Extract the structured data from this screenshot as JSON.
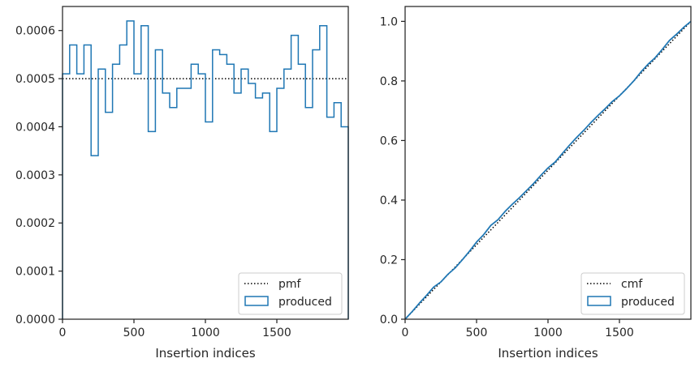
{
  "chart_data": [
    {
      "type": "line",
      "subtype": "step-histogram",
      "title": "",
      "xlabel": "Insertion indices",
      "ylabel": "",
      "xlim": [
        0,
        2000
      ],
      "ylim": [
        0,
        0.00065
      ],
      "xticks": [
        0,
        500,
        1000,
        1500
      ],
      "yticks": [
        0.0,
        0.0001,
        0.0002,
        0.0003,
        0.0004,
        0.0005,
        0.0006
      ],
      "ytick_labels": [
        "0.0000",
        "0.0001",
        "0.0002",
        "0.0003",
        "0.0004",
        "0.0005",
        "0.0006"
      ],
      "grid": false,
      "legend_position": "lower-right",
      "bin_edges": [
        0,
        50,
        100,
        150,
        200,
        250,
        300,
        350,
        400,
        450,
        500,
        550,
        600,
        650,
        700,
        750,
        800,
        850,
        900,
        950,
        1000,
        1050,
        1100,
        1150,
        1200,
        1250,
        1300,
        1350,
        1400,
        1450,
        1500,
        1550,
        1600,
        1650,
        1700,
        1750,
        1800,
        1850,
        1900,
        1950,
        2000
      ],
      "series": [
        {
          "name": "pmf",
          "style": "dotted",
          "color": "#000000",
          "values": [
            0.0005
          ]
        },
        {
          "name": "produced",
          "style": "step",
          "color": "#1f77b4",
          "values": [
            0.00051,
            0.00057,
            0.00051,
            0.00057,
            0.00034,
            0.00052,
            0.00043,
            0.00053,
            0.00057,
            0.00062,
            0.00051,
            0.00061,
            0.00039,
            0.00056,
            0.00047,
            0.00044,
            0.00048,
            0.00048,
            0.00053,
            0.00051,
            0.00041,
            0.00056,
            0.00055,
            0.00053,
            0.00047,
            0.00052,
            0.00049,
            0.00046,
            0.00047,
            0.00039,
            0.00048,
            0.00052,
            0.00059,
            0.00053,
            0.00044,
            0.00056,
            0.00061,
            0.00042,
            0.00045,
            0.0004
          ]
        }
      ]
    },
    {
      "type": "line",
      "subtype": "step-cumulative",
      "title": "",
      "xlabel": "Insertion indices",
      "ylabel": "",
      "xlim": [
        0,
        2000
      ],
      "ylim": [
        0,
        1.05
      ],
      "xticks": [
        0,
        500,
        1000,
        1500
      ],
      "yticks": [
        0.0,
        0.2,
        0.4,
        0.6,
        0.8,
        1.0
      ],
      "ytick_labels": [
        "0.0",
        "0.2",
        "0.4",
        "0.6",
        "0.8",
        "1.0"
      ],
      "grid": false,
      "legend_position": "lower-right",
      "series": [
        {
          "name": "cmf",
          "style": "dotted",
          "color": "#000000",
          "x": [
            0,
            2000
          ],
          "values": [
            0.0,
            1.0
          ]
        },
        {
          "name": "produced",
          "style": "step",
          "color": "#1f77b4",
          "x": [
            0,
            50,
            100,
            150,
            200,
            250,
            300,
            350,
            400,
            450,
            500,
            550,
            600,
            650,
            700,
            750,
            800,
            850,
            900,
            950,
            1000,
            1050,
            1100,
            1150,
            1200,
            1250,
            1300,
            1350,
            1400,
            1450,
            1500,
            1550,
            1600,
            1650,
            1700,
            1750,
            1800,
            1850,
            1900,
            1950,
            2000
          ],
          "values": [
            0.0,
            0.026,
            0.054,
            0.08,
            0.108,
            0.125,
            0.151,
            0.172,
            0.199,
            0.228,
            0.259,
            0.284,
            0.315,
            0.334,
            0.362,
            0.386,
            0.408,
            0.432,
            0.456,
            0.483,
            0.508,
            0.528,
            0.556,
            0.584,
            0.61,
            0.634,
            0.66,
            0.684,
            0.707,
            0.731,
            0.75,
            0.774,
            0.8,
            0.83,
            0.856,
            0.878,
            0.906,
            0.936,
            0.957,
            0.98,
            1.0
          ]
        }
      ]
    }
  ]
}
